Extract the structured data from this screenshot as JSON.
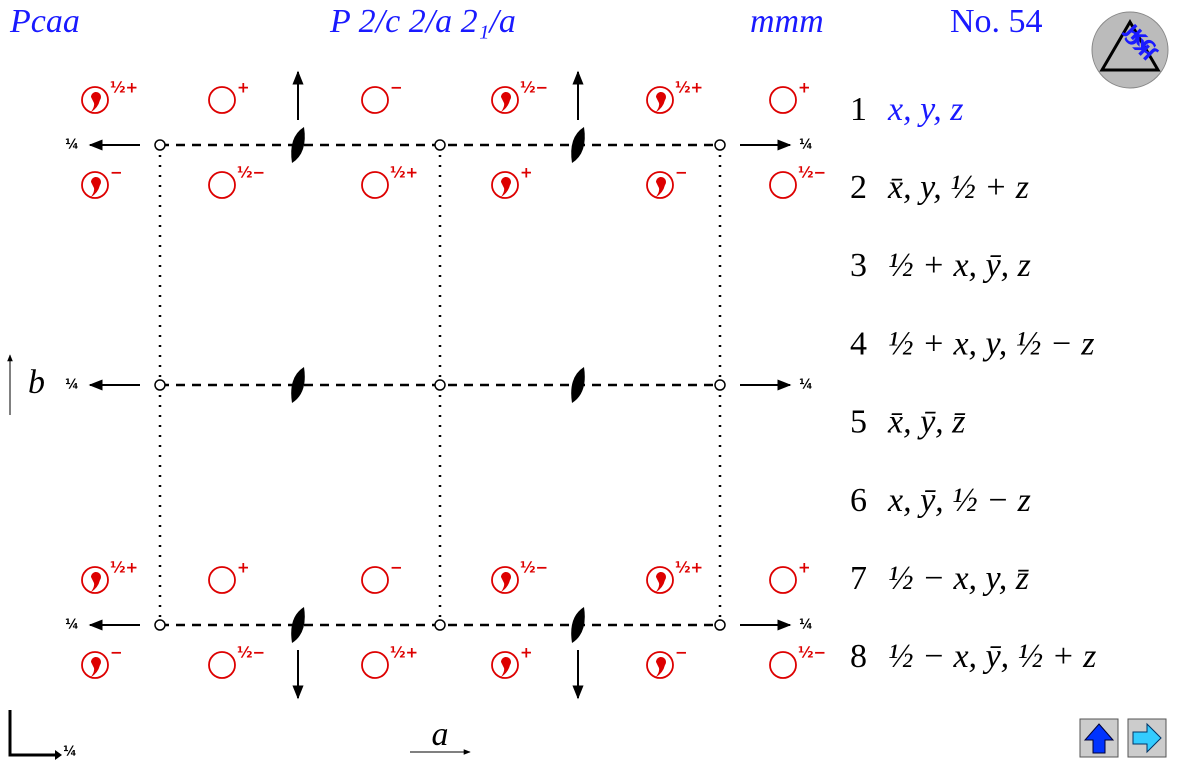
{
  "header": {
    "symbol": "Pcaa",
    "full_symbol": "P 2/c 2/a 2₁/a",
    "point_group": "mmm",
    "number": "No. 54"
  },
  "logo": "JKC",
  "symbol_rows": [
    [
      {
        "label": "½+",
        "comma": true
      },
      {
        "label": "+",
        "comma": false
      },
      {
        "label": "−",
        "comma": false
      },
      {
        "label": "½−",
        "comma": true
      },
      {
        "label": "½+",
        "comma": true
      },
      {
        "label": "+",
        "comma": false
      }
    ],
    [
      {
        "label": "−",
        "comma": true
      },
      {
        "label": "½−",
        "comma": false
      },
      {
        "label": "½+",
        "comma": false
      },
      {
        "label": "+",
        "comma": true
      },
      {
        "label": "−",
        "comma": true
      },
      {
        "label": "½−",
        "comma": false
      }
    ],
    [
      {
        "label": "½+",
        "comma": true
      },
      {
        "label": "+",
        "comma": false
      },
      {
        "label": "−",
        "comma": false
      },
      {
        "label": "½−",
        "comma": true
      },
      {
        "label": "½+",
        "comma": true
      },
      {
        "label": "+",
        "comma": false
      }
    ],
    [
      {
        "label": "−",
        "comma": true
      },
      {
        "label": "½−",
        "comma": false
      },
      {
        "label": "½+",
        "comma": false
      },
      {
        "label": "+",
        "comma": true
      },
      {
        "label": "−",
        "comma": true
      },
      {
        "label": "½−",
        "comma": false
      }
    ]
  ],
  "height_labels": {
    "left": [
      "¼",
      "¼",
      "¼"
    ],
    "right": [
      "¼",
      "¼",
      "¼"
    ],
    "origin": "¼"
  },
  "axes": {
    "a": "a",
    "b": "b"
  },
  "positions": [
    {
      "number": "1",
      "coordinates": "x, y, z"
    },
    {
      "number": "2",
      "coordinates": "x̄, y, ½ + z"
    },
    {
      "number": "3",
      "coordinates": "½ + x, ȳ, z"
    },
    {
      "number": "4",
      "coordinates": "½ + x, y, ½ − z"
    },
    {
      "number": "5",
      "coordinates": "x̄, ȳ, z̄"
    },
    {
      "number": "6",
      "coordinates": "x, ȳ, ½ − z"
    },
    {
      "number": "7",
      "coordinates": "½ − x, y, z̄"
    },
    {
      "number": "8",
      "coordinates": "½ − x, ȳ, ½ + z"
    }
  ]
}
